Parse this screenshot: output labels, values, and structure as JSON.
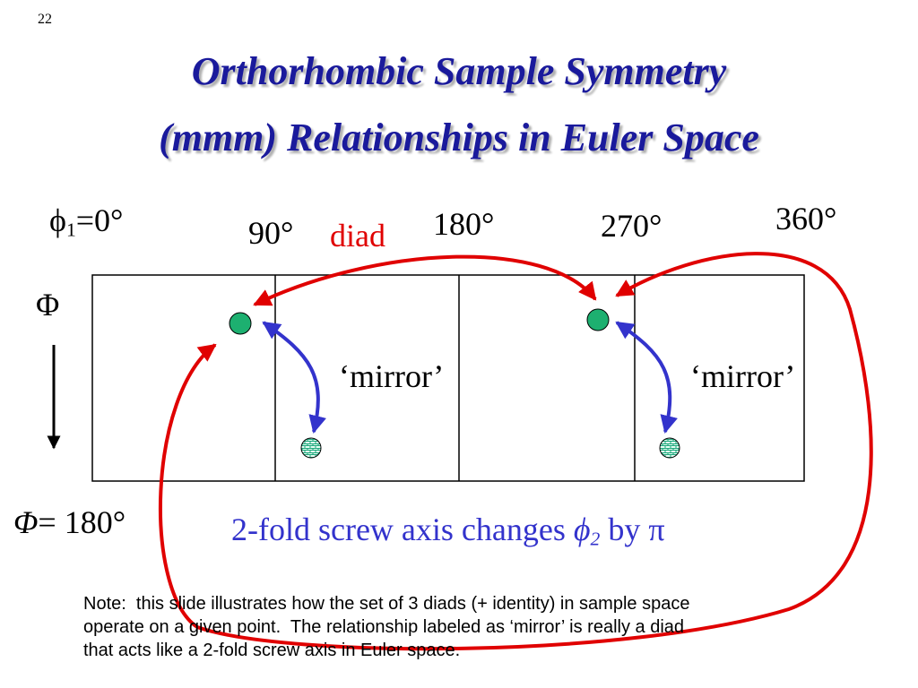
{
  "slide_number": "22",
  "title": [
    "Orthorhombic Sample Symmetry",
    "(mmm) Relationships in Euler Space"
  ],
  "phi1_label": {
    "symbol": "ϕ",
    "subscript": "1",
    "text": "=0°"
  },
  "phi1_ticks": [
    "90°",
    "180°",
    "270°",
    "360°"
  ],
  "diad_label": "diad",
  "Phi_label": "Φ",
  "Phi_end_label": {
    "symbol": "Φ",
    "text": "= 180°"
  },
  "mirror_labels": [
    "‘mirror’",
    "‘mirror’"
  ],
  "caption": {
    "text": "2-fold screw axis changes ",
    "symbol": "ϕ",
    "subscript": "2",
    "tail": " by π"
  },
  "note": [
    "Note:  this slide illustrates how the set of 3 diads (+ identity) in sample space",
    "operate on a given point.  The relationship labeled as ‘mirror’ is really a diad",
    "that acts like a 2-fold screw axis in Euler space."
  ]
}
